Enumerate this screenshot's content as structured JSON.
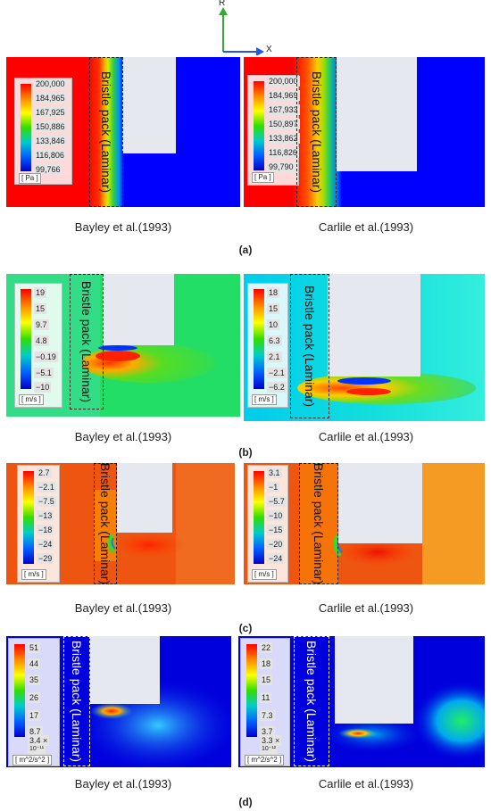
{
  "axes": {
    "r_label": "R",
    "x_label": "X"
  },
  "colors": {
    "axis_r": "#33aa33",
    "axis_x": "#2255ee"
  },
  "panels": {
    "a": {
      "tag": "(a)",
      "left": {
        "caption": "Bayley et al.(1993)",
        "bristle": "Bristle pack (Laminar)",
        "unit": "[ Pa ]",
        "ticks": [
          "200,000",
          "184,965",
          "167,925",
          "150,886",
          "133,846",
          "116,806",
          "99,766"
        ]
      },
      "right": {
        "caption": "Carlile et al.(1993)",
        "bristle": "Bristle pack (Laminar)",
        "unit": "[ Pa ]",
        "ticks": [
          "200,000",
          "184,969",
          "167,933",
          "150,897",
          "133,862",
          "116,826",
          "99,790"
        ]
      }
    },
    "b": {
      "tag": "(b)",
      "left": {
        "caption": "Bayley et al.(1993)",
        "bristle": "Bristle pack (Laminar)",
        "unit": "[ m/s ]",
        "ticks": [
          "19",
          "15",
          "9.7",
          "4.8",
          "−0.19",
          "−5.1",
          "−10"
        ]
      },
      "right": {
        "caption": "Carlile et al.(1993)",
        "bristle": "Bristle pack (Laminar)",
        "unit": "[ m/s ]",
        "ticks": [
          "18",
          "15",
          "10",
          "6.3",
          "2.1",
          "−2.1",
          "−6.2"
        ]
      }
    },
    "c": {
      "tag": "(c)",
      "left": {
        "caption": "Bayley et al.(1993)",
        "bristle": "Bristle pack (Laminar)",
        "unit": "[ m/s ]",
        "ticks": [
          "2.7",
          "−2.1",
          "−7.5",
          "−13",
          "−18",
          "−24",
          "−29"
        ]
      },
      "right": {
        "caption": "Carlile et al.(1993)",
        "bristle": "Bristle pack (Laminar)",
        "unit": "[ m/s ]",
        "ticks": [
          "3.1",
          "−1",
          "−5.7",
          "−10",
          "−15",
          "−20",
          "−24"
        ]
      }
    },
    "d": {
      "tag": "(d)",
      "left": {
        "caption": "Bayley et al.(1993)",
        "bristle": "Bristle pack (Laminar)",
        "unit": "[ m^2/s^2 ]",
        "ticks": [
          "51",
          "44",
          "35",
          "26",
          "17",
          "8.7",
          "3.4 ×"
        ],
        "exp": "10⁻¹¹"
      },
      "right": {
        "caption": "Carlile et al.(1993)",
        "bristle": "Bristle pack (Laminar)",
        "unit": "[ m^2/s^2 ]",
        "ticks": [
          "22",
          "18",
          "15",
          "11",
          "7.3",
          "3.7",
          "3.3 ×"
        ],
        "exp": "10⁻¹²"
      }
    }
  }
}
